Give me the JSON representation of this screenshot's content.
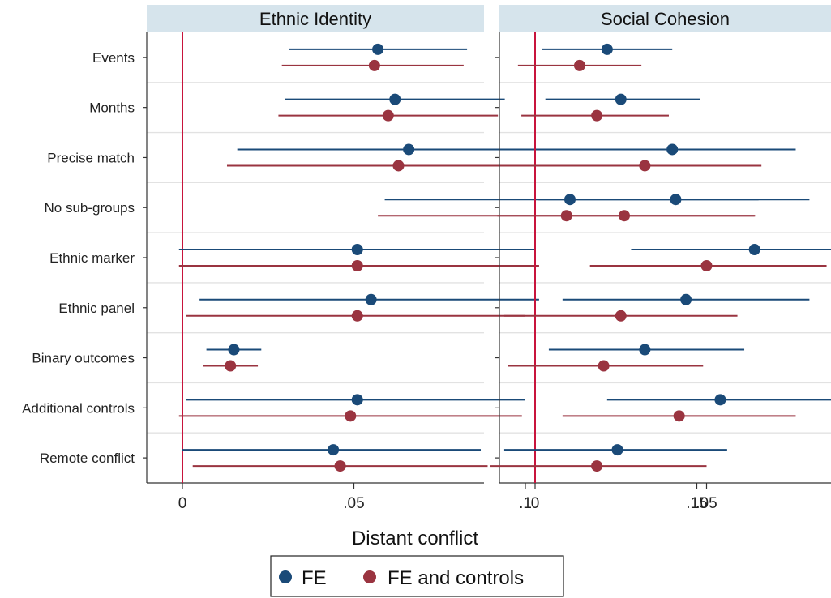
{
  "chart_data": {
    "type": "scatter",
    "subtype": "coefficient-plot",
    "xlabel": "Distant conflict",
    "xlim": [
      -0.02,
      0.17
    ],
    "xticks": [
      0,
      0.05,
      0.1,
      0.15
    ],
    "xtick_labels": [
      "0",
      ".05",
      ".1",
      ".15"
    ],
    "reference_line": 0,
    "grid": "horizontal-between-rows",
    "legend": {
      "placement": "bottom-center",
      "entries": [
        "FE",
        "FE and controls"
      ]
    },
    "categories": [
      "Events",
      "Months",
      "Precise match",
      "No sub-groups",
      "Ethnic marker",
      "Ethnic panel",
      "Binary outcomes",
      "Additional controls",
      "Remote conflict"
    ],
    "colors": {
      "FE": "#1a4a78",
      "FE and controls": "#9a3440",
      "reference": "#c8143c",
      "header": "#d6e4ec",
      "grid": "#e2e2e2"
    },
    "panels": [
      {
        "title": "Ethnic Identity",
        "series": [
          {
            "name": "FE",
            "points": [
              {
                "est": 0.057,
                "lo": 0.031,
                "hi": 0.083
              },
              {
                "est": 0.062,
                "lo": 0.03,
                "hi": 0.094
              },
              {
                "est": 0.066,
                "lo": 0.016,
                "hi": 0.115
              },
              {
                "est": 0.113,
                "lo": 0.059,
                "hi": 0.168
              },
              {
                "est": 0.051,
                "lo": -0.001,
                "hi": 0.103
              },
              {
                "est": 0.055,
                "lo": 0.005,
                "hi": 0.104
              },
              {
                "est": 0.015,
                "lo": 0.007,
                "hi": 0.023
              },
              {
                "est": 0.051,
                "lo": 0.001,
                "hi": 0.1
              },
              {
                "est": 0.044,
                "lo": 0.0,
                "hi": 0.087
              }
            ]
          },
          {
            "name": "FE and controls",
            "points": [
              {
                "est": 0.056,
                "lo": 0.029,
                "hi": 0.082
              },
              {
                "est": 0.06,
                "lo": 0.028,
                "hi": 0.092
              },
              {
                "est": 0.063,
                "lo": 0.013,
                "hi": 0.113
              },
              {
                "est": 0.112,
                "lo": 0.057,
                "hi": 0.167
              },
              {
                "est": 0.051,
                "lo": -0.001,
                "hi": 0.104
              },
              {
                "est": 0.051,
                "lo": 0.001,
                "hi": 0.1
              },
              {
                "est": 0.014,
                "lo": 0.006,
                "hi": 0.022
              },
              {
                "est": 0.049,
                "lo": -0.001,
                "hi": 0.099
              },
              {
                "est": 0.046,
                "lo": 0.003,
                "hi": 0.089
              }
            ]
          }
        ]
      },
      {
        "title": "Social Cohesion",
        "series": [
          {
            "name": "FE",
            "points": [
              {
                "est": 0.021,
                "lo": 0.002,
                "hi": 0.04
              },
              {
                "est": 0.025,
                "lo": 0.003,
                "hi": 0.048
              },
              {
                "est": 0.04,
                "lo": 0.004,
                "hi": 0.076
              },
              {
                "est": 0.041,
                "lo": 0.001,
                "hi": 0.08
              },
              {
                "est": 0.064,
                "lo": 0.028,
                "hi": 0.101
              },
              {
                "est": 0.044,
                "lo": 0.008,
                "hi": 0.08
              },
              {
                "est": 0.032,
                "lo": 0.004,
                "hi": 0.061
              },
              {
                "est": 0.054,
                "lo": 0.021,
                "hi": 0.088
              },
              {
                "est": 0.024,
                "lo": -0.009,
                "hi": 0.056
              }
            ]
          },
          {
            "name": "FE and controls",
            "points": [
              {
                "est": 0.013,
                "lo": -0.005,
                "hi": 0.031
              },
              {
                "est": 0.018,
                "lo": -0.004,
                "hi": 0.039
              },
              {
                "est": 0.032,
                "lo": -0.002,
                "hi": 0.066
              },
              {
                "est": 0.026,
                "lo": -0.011,
                "hi": 0.064
              },
              {
                "est": 0.05,
                "lo": 0.016,
                "hi": 0.085
              },
              {
                "est": 0.025,
                "lo": -0.009,
                "hi": 0.059
              },
              {
                "est": 0.02,
                "lo": -0.008,
                "hi": 0.049
              },
              {
                "est": 0.042,
                "lo": 0.008,
                "hi": 0.076
              },
              {
                "est": 0.018,
                "lo": -0.013,
                "hi": 0.05
              }
            ]
          }
        ]
      }
    ]
  }
}
